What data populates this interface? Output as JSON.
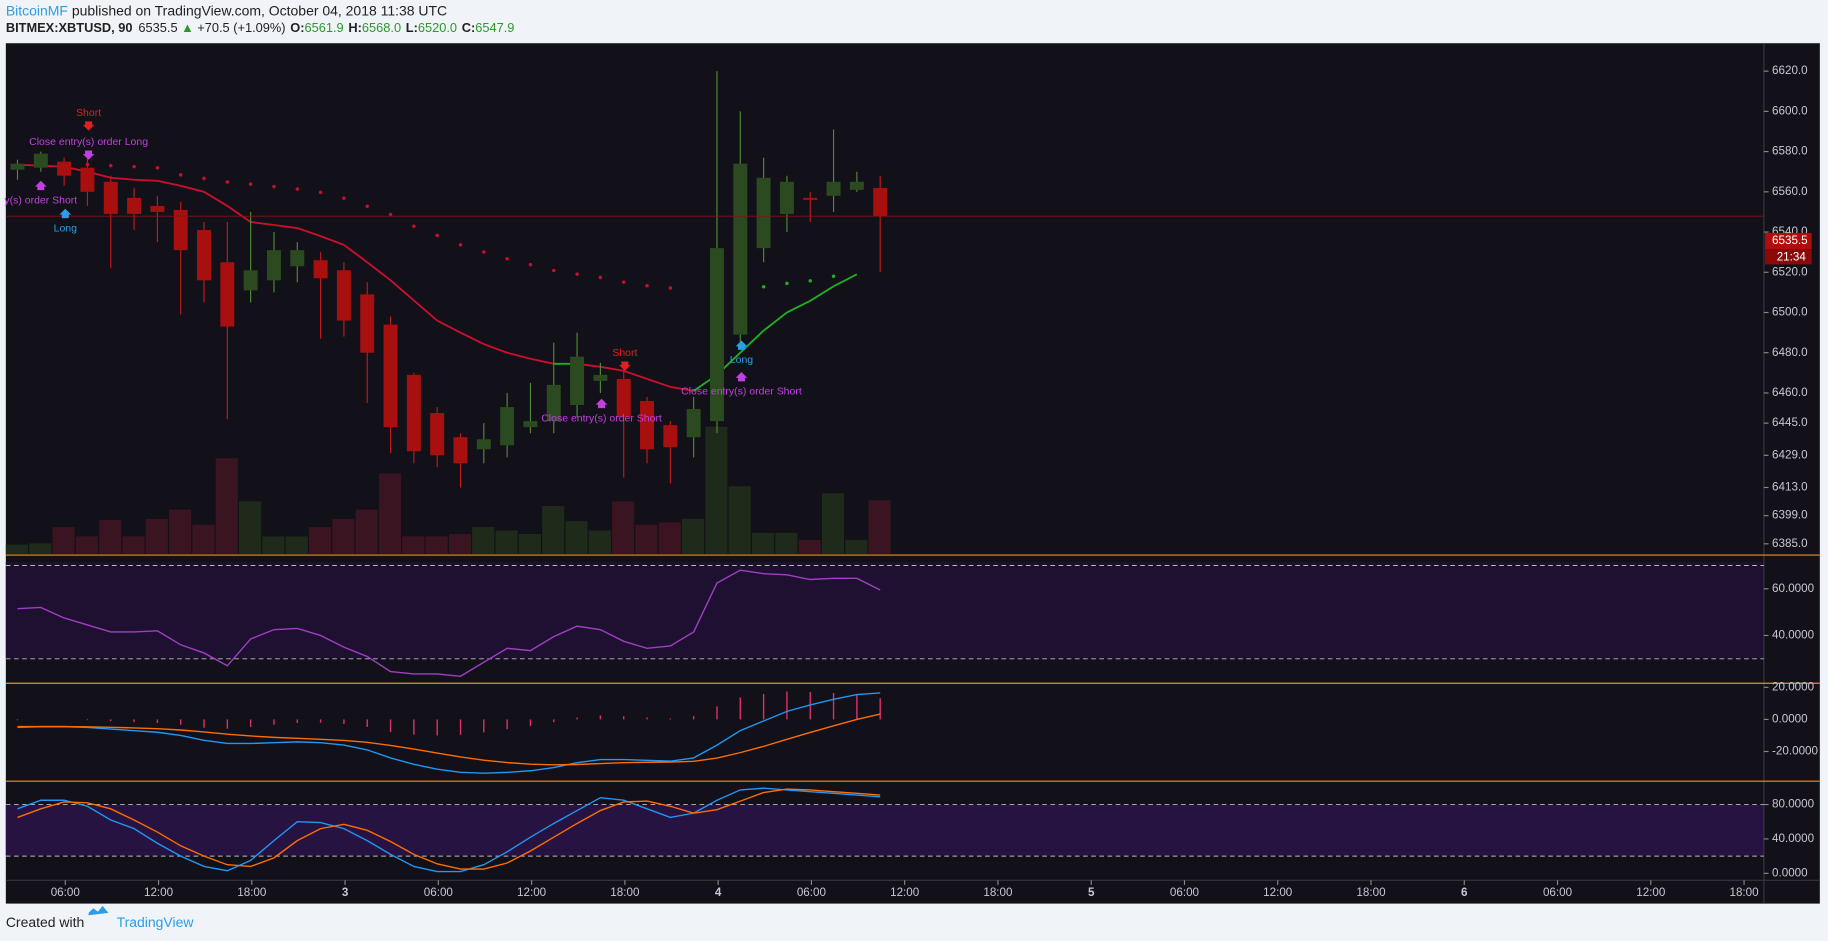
{
  "header": {
    "author": "BitcoinMF",
    "published": " published on TradingView.com, October 04, 2018 11:38 UTC",
    "symbol": "BITMEX:XBTUSD, 90",
    "price": "6535.5",
    "arrow": "▲",
    "change": "+70.5 (+1.09%)",
    "o_label": "O:",
    "o": "6561.9",
    "h_label": "H:",
    "h": "6568.0",
    "l_label": "L:",
    "l": "6520.0",
    "c_label": "C:",
    "c": "6547.9"
  },
  "footer": {
    "created": "Created with",
    "brand": "TradingView"
  },
  "time_axis": [
    "06:00",
    "12:00",
    "18:00",
    "3",
    "06:00",
    "12:00",
    "18:00",
    "4",
    "06:00",
    "12:00",
    "18:00",
    "5",
    "06:00",
    "12:00",
    "18:00",
    "6",
    "06:00",
    "12:00",
    "18:00"
  ],
  "chart_data": [
    {
      "type": "candlestick",
      "open": [
        6571,
        6572,
        6575,
        6572,
        6565,
        6557,
        6553,
        6551,
        6541,
        6525,
        6511,
        6516,
        6523,
        6526,
        6521,
        6509,
        6494,
        6469,
        6450,
        6438,
        6432,
        6434,
        6443,
        6446,
        6454,
        6466,
        6467,
        6456,
        6444,
        6438,
        6446,
        6489,
        6532,
        6549,
        6557,
        6558,
        6561,
        6561.9
      ],
      "high": [
        6576,
        6580,
        6577,
        6578,
        6568,
        6562,
        6558,
        6555,
        6545,
        6545,
        6550,
        6540,
        6535,
        6530,
        6525,
        6515,
        6498,
        6470,
        6453,
        6440,
        6445,
        6460,
        6465,
        6485,
        6490,
        6475,
        6475,
        6458,
        6446,
        6458,
        6620,
        6600,
        6577,
        6568,
        6560,
        6591,
        6570,
        6568
      ],
      "low": [
        6566,
        6570,
        6563,
        6553,
        6522,
        6541,
        6535,
        6499,
        6505,
        6447,
        6505,
        6510,
        6515,
        6487,
        6488,
        6455,
        6430,
        6425,
        6423,
        6413,
        6425,
        6428,
        6440,
        6440,
        6448,
        6460,
        6418,
        6425,
        6415,
        6428,
        6440,
        6485,
        6525,
        6540,
        6545,
        6550,
        6560,
        6520
      ],
      "close": [
        6574,
        6579,
        6568,
        6560,
        6549,
        6549,
        6550,
        6531,
        6516,
        6493,
        6521,
        6531,
        6531,
        6517,
        6496,
        6480,
        6443,
        6431,
        6429,
        6425,
        6437,
        6453,
        6446,
        6464,
        6478,
        6469,
        6448,
        6432,
        6433,
        6452,
        6532,
        6574,
        6567,
        6565,
        6556,
        6565,
        6565,
        6547.9
      ],
      "volume": [
        8,
        9,
        23,
        15,
        29,
        15,
        30,
        38,
        25,
        82,
        45,
        15,
        15,
        23,
        30,
        38,
        69,
        15,
        15,
        17,
        23,
        20,
        17,
        41,
        28,
        20,
        45,
        25,
        27,
        30,
        109,
        58,
        18,
        18,
        12,
        52,
        12,
        46
      ],
      "ma": [
        6573.5,
        6573,
        6572.5,
        6570,
        6567,
        6566,
        6565.5,
        6563,
        6560,
        6553,
        6545,
        6543.5,
        6542,
        6538,
        6533.6,
        6525,
        6516,
        6506,
        6496,
        6490,
        6484.3,
        6480,
        6477,
        6474.5,
        6474.5,
        6473,
        6471,
        6467,
        6463,
        6461,
        6469,
        6480,
        6491,
        6500,
        6505.8,
        6513,
        6519,
        null
      ],
      "psar": [
        null,
        null,
        null,
        6573.6,
        6573,
        6572.5,
        6571.9,
        6568.4,
        6566.7,
        6564.9,
        6563.8,
        6562.6,
        6561.4,
        6559.7,
        6556.8,
        6552.8,
        6548.7,
        6542.9,
        6538.3,
        6533.6,
        6530.1,
        6526.7,
        6523.8,
        6520.9,
        6519.1,
        6517.4,
        6515.1,
        6513.3,
        6512.2,
        null,
        null,
        null,
        6512.8,
        6514.5,
        6515.7,
        6518,
        null,
        null
      ],
      "up_color": "#2b4a1f",
      "down_color": "#a80f0f",
      "ma_up_color": "#1fae1f",
      "ma_down_color": "#c8102e",
      "ylim": [
        6380,
        6633.3
      ],
      "yticks": [
        {
          "value": 6620,
          "label": "6620.0"
        },
        {
          "value": 6600,
          "label": "6600.0"
        },
        {
          "value": 6580,
          "label": "6580.0"
        },
        {
          "value": 6560,
          "label": "6560.0"
        },
        {
          "value": 6540,
          "label": "6540.0"
        },
        {
          "value": 6520,
          "label": "6520.0"
        },
        {
          "value": 6500,
          "label": "6500.0"
        },
        {
          "value": 6480,
          "label": "6480.0"
        },
        {
          "value": 6460,
          "label": "6460.0"
        },
        {
          "value": 6445,
          "label": "6445.0"
        },
        {
          "value": 6429,
          "label": "6429.0"
        },
        {
          "value": 6413,
          "label": "6413.0"
        },
        {
          "value": 6399,
          "label": "6399.0"
        },
        {
          "value": 6385,
          "label": "6385.0"
        }
      ],
      "last_price": 6535.5,
      "countdown": "21:34",
      "annotations": [
        "Short",
        "Close entry(s) order Long",
        "y(s) order Short",
        "Long",
        "Short",
        "Close entry(s) order Short",
        "Long",
        "Close entry(s) order Short"
      ]
    },
    {
      "type": "line",
      "color": "#a13ec4",
      "values": [
        51.5,
        52,
        47.5,
        44.5,
        41.5,
        41.5,
        42,
        36,
        32.5,
        27,
        38.5,
        42.5,
        43,
        40,
        35,
        31,
        24.5,
        23.5,
        23.5,
        22.5,
        28.5,
        34.5,
        33.5,
        39.5,
        44,
        42.5,
        37.5,
        34.5,
        35.5,
        41.5,
        62.5,
        68,
        66.5,
        66,
        64,
        64.5,
        64.5,
        59.5
      ],
      "ylim": [
        19.5,
        74
      ],
      "yticks": [
        {
          "value": 60,
          "label": "60.0000"
        },
        {
          "value": 40,
          "label": "40.0000"
        }
      ],
      "bands": [
        70,
        30
      ]
    },
    {
      "type": "macd",
      "macd_color": "#2196f3",
      "signal_color": "#ff6d00",
      "hist_color": "#e0306a",
      "macd": [
        -5,
        -4.5,
        -4.5,
        -5,
        -6,
        -7,
        -8,
        -10,
        -13,
        -15,
        -15,
        -14.5,
        -14,
        -14.5,
        -16,
        -19,
        -24,
        -28,
        -31,
        -33,
        -33.5,
        -33,
        -32,
        -30,
        -27,
        -25,
        -25,
        -25.5,
        -26,
        -24,
        -16,
        -7,
        -1,
        5,
        9,
        12.5,
        15.5,
        16.5
      ],
      "signal": [
        -4.5,
        -4.5,
        -4.5,
        -4.6,
        -4.9,
        -5.3,
        -5.8,
        -6.6,
        -7.8,
        -9.2,
        -10.3,
        -11.2,
        -11.8,
        -12.4,
        -13.1,
        -14.3,
        -16.2,
        -18.5,
        -21,
        -23.4,
        -25.4,
        -26.9,
        -27.9,
        -28.3,
        -28.1,
        -27.5,
        -27,
        -26.7,
        -26.6,
        -26.1,
        -24.1,
        -20.7,
        -16.8,
        -12.4,
        -8.1,
        -4,
        0,
        3.3
      ],
      "histogram": [
        -0.5,
        0,
        0,
        -0.4,
        -1.1,
        -1.7,
        -2.2,
        -3.4,
        -5.2,
        -5.8,
        -4.7,
        -3.3,
        -2.2,
        -2.1,
        -2.9,
        -4.7,
        -7.8,
        -9.5,
        -10,
        -9.6,
        -8.1,
        -6.1,
        -4.1,
        -1.7,
        1.1,
        2.5,
        2,
        1.2,
        0.6,
        2.1,
        8.1,
        13.7,
        15.8,
        17.4,
        17.1,
        16.5,
        15.5,
        13.2
      ],
      "ylim": [
        -38.5,
        21.8
      ],
      "yticks": [
        {
          "value": 20,
          "label": "20.0000"
        },
        {
          "value": 0,
          "label": "0.0000"
        },
        {
          "value": -20,
          "label": "-20.0000"
        }
      ]
    },
    {
      "type": "stochastic",
      "k_color": "#2196f3",
      "d_color": "#ff6d00",
      "k": [
        75,
        85,
        85,
        78,
        62,
        52,
        35,
        20,
        8,
        3,
        15,
        38,
        60,
        59,
        52,
        38,
        22,
        8,
        2,
        2,
        10,
        25,
        42,
        58,
        73,
        88,
        85,
        75,
        65,
        70,
        85,
        97,
        99,
        97,
        95,
        93,
        91,
        89
      ],
      "d": [
        65,
        75,
        83,
        82,
        75,
        62,
        48,
        32,
        20,
        10,
        8,
        18,
        38,
        52,
        57,
        50,
        37,
        22,
        11,
        5,
        5,
        12,
        26,
        42,
        58,
        73,
        83,
        84,
        78,
        70,
        74,
        84,
        94,
        98,
        97,
        95,
        93,
        91
      ],
      "ylim": [
        -8.1,
        105.8
      ],
      "yticks": [
        {
          "value": 80,
          "label": "80.0000"
        },
        {
          "value": 40,
          "label": "40.0000"
        },
        {
          "value": 0,
          "label": "0.0000"
        }
      ],
      "bands": [
        80,
        20
      ]
    }
  ]
}
